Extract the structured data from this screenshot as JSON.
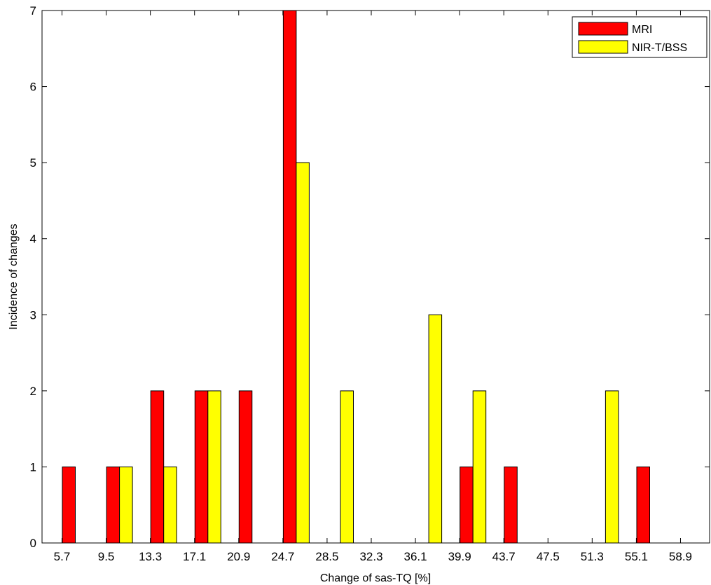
{
  "chart_data": {
    "type": "bar",
    "xlabel": "Change of sas-TQ [%]",
    "ylabel": "Incidence of changes",
    "categories": [
      "5.7",
      "9.5",
      "13.3",
      "17.1",
      "20.9",
      "24.7",
      "28.5",
      "32.3",
      "36.1",
      "39.9",
      "43.7",
      "47.5",
      "51.3",
      "55.1",
      "58.9"
    ],
    "ylim": [
      0,
      7
    ],
    "yticks": [
      0,
      1,
      2,
      3,
      4,
      5,
      6,
      7
    ],
    "grid": false,
    "legend_position": "top-right",
    "series": [
      {
        "name": "MRI",
        "color": "#ff0000",
        "values": [
          1,
          1,
          2,
          2,
          2,
          7,
          0,
          0,
          0,
          1,
          1,
          0,
          0,
          1,
          0
        ]
      },
      {
        "name": "NIR-T/BSS",
        "color": "#ffff00",
        "values": [
          0,
          1,
          1,
          2,
          0,
          5,
          2,
          0,
          3,
          2,
          0,
          0,
          2,
          0,
          0
        ]
      }
    ]
  }
}
